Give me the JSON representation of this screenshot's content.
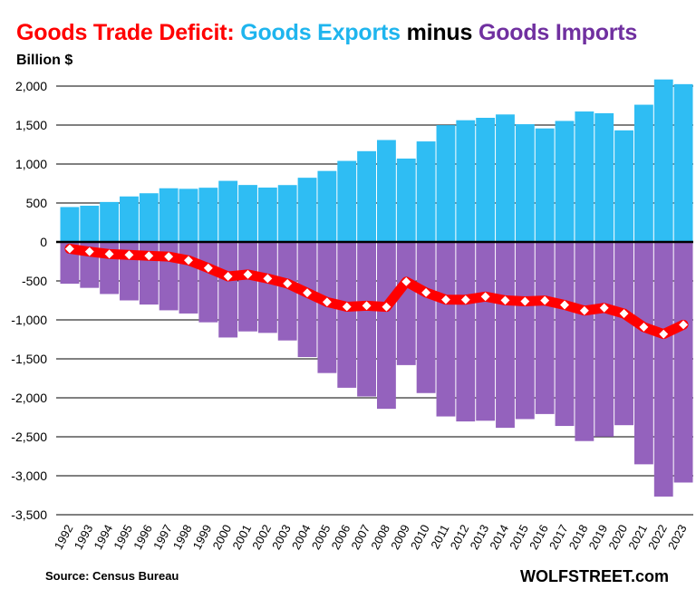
{
  "chart_data": {
    "type": "bar",
    "title_parts": [
      {
        "text": "Goods Trade Deficit: ",
        "color": "#FF0000"
      },
      {
        "text": "Goods Exports ",
        "color": "#1FB5EE"
      },
      {
        "text": "minus ",
        "color": "#000000"
      },
      {
        "text": "Goods Imports",
        "color": "#7030A0"
      }
    ],
    "ylabel": "Billion $",
    "ylim": [
      -3500,
      2100
    ],
    "yticks": [
      2000,
      1500,
      1000,
      500,
      0,
      -500,
      -1000,
      -1500,
      -2000,
      -2500,
      -3000,
      -3500
    ],
    "ytick_labels": [
      "2,000",
      "1,500",
      "1,000",
      "500",
      "0",
      "-500",
      "-1,000",
      "-1,500",
      "-2,000",
      "-2,500",
      "-3,000",
      "-3,500"
    ],
    "grid": true,
    "categories": [
      "1992",
      "1993",
      "1994",
      "1995",
      "1996",
      "1997",
      "1998",
      "1999",
      "2000",
      "2001",
      "2002",
      "2003",
      "2004",
      "2005",
      "2006",
      "2007",
      "2008",
      "2009",
      "2010",
      "2011",
      "2012",
      "2013",
      "2014",
      "2015",
      "2016",
      "2017",
      "2018",
      "2019",
      "2020",
      "2021",
      "2022",
      "2023"
    ],
    "series": [
      {
        "type": "bar",
        "color": "#2FBDF3",
        "values": [
          448,
          465,
          513,
          584,
          625,
          689,
          682,
          696,
          784,
          731,
          698,
          730,
          824,
          911,
          1040,
          1165,
          1308,
          1070,
          1290,
          1499,
          1562,
          1593,
          1636,
          1511,
          1457,
          1553,
          1674,
          1652,
          1432,
          1761,
          2085,
          2025
        ]
      },
      {
        "type": "bar",
        "color": "#9462BD",
        "values": [
          -536,
          -589,
          -668,
          -750,
          -803,
          -877,
          -918,
          -1031,
          -1226,
          -1148,
          -1167,
          -1264,
          -1477,
          -1682,
          -1871,
          -1983,
          -2141,
          -1580,
          -1939,
          -2239,
          -2303,
          -2294,
          -2385,
          -2273,
          -2208,
          -2361,
          -2555,
          -2498,
          -2351,
          -2853,
          -3267,
          -3087
        ]
      },
      {
        "type": "line",
        "color": "#FF0000",
        "marker_color": "#FFFFFF",
        "values": [
          -88,
          -124,
          -155,
          -166,
          -178,
          -188,
          -236,
          -335,
          -442,
          -417,
          -469,
          -534,
          -653,
          -771,
          -831,
          -818,
          -833,
          -510,
          -649,
          -740,
          -741,
          -701,
          -749,
          -762,
          -751,
          -808,
          -881,
          -846,
          -919,
          -1092,
          -1182,
          -1062
        ]
      }
    ]
  },
  "footer": {
    "source": "Source: Census Bureau",
    "brand": "WOLFSTREET.com"
  }
}
